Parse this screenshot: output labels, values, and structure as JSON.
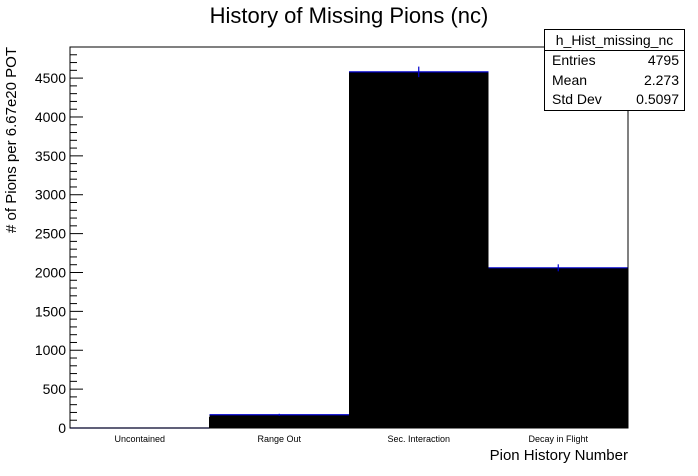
{
  "chart_data": {
    "type": "bar",
    "title": "History of Missing Pions (nc)",
    "xlabel": "Pion History Number",
    "ylabel": "# of Pions per 6.67e20 POT",
    "categories": [
      "Uncontained",
      "Range Out",
      "Sec. Interaction",
      "Decay in Flight"
    ],
    "values": [
      0,
      170,
      4580,
      2060
    ],
    "errors": [
      0,
      13,
      68,
      45
    ],
    "ylim": [
      0,
      4900
    ],
    "yticks": [
      "0",
      "500",
      "1000",
      "1500",
      "2000",
      "2500",
      "3000",
      "3500",
      "4000",
      "4500"
    ],
    "grid": false,
    "legend": "none",
    "bar_color": "#000000",
    "error_color": "#0000cc"
  },
  "stats": {
    "name": "h_Hist_missing_nc",
    "entries_label": "Entries",
    "entries_value": "4795",
    "mean_label": "Mean",
    "mean_value": "2.273",
    "stddev_label": "Std Dev",
    "stddev_value": "0.5097"
  }
}
